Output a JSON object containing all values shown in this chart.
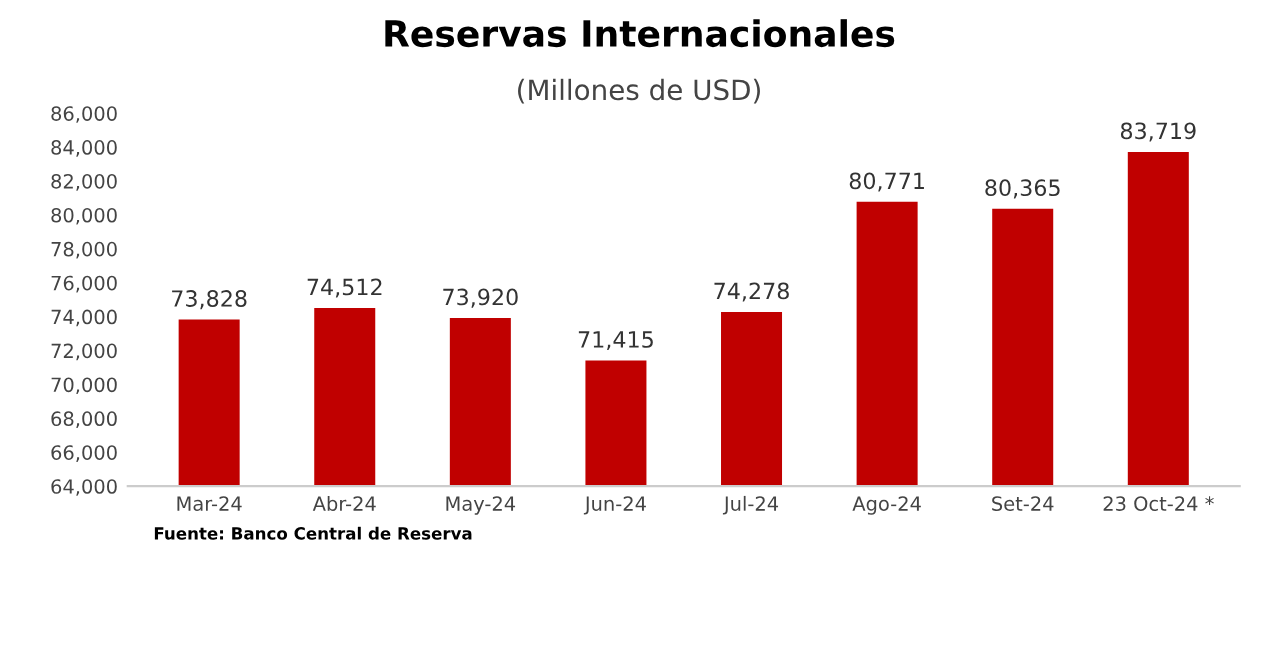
{
  "chart_data": {
    "type": "bar",
    "title": "Reservas Internacionales",
    "subtitle": "(Millones de USD)",
    "categories": [
      "Mar-24",
      "Abr-24",
      "May-24",
      "Jun-24",
      "Jul-24",
      "Ago-24",
      "Set-24",
      "23 Oct-24 *"
    ],
    "values": [
      73828,
      74512,
      73920,
      71415,
      74278,
      80771,
      80365,
      83719
    ],
    "value_labels": [
      "73,828",
      "74,512",
      "73,920",
      "71,415",
      "74,278",
      "80,771",
      "80,365",
      "83,719"
    ],
    "color": "#c00000",
    "ylim": [
      64000,
      86000
    ],
    "yticks": [
      {
        "value": 64000,
        "label": "64,000"
      },
      {
        "value": 66000,
        "label": "66,000"
      },
      {
        "value": 68000,
        "label": "68,000"
      },
      {
        "value": 70000,
        "label": "70,000"
      },
      {
        "value": 72000,
        "label": "72,000"
      },
      {
        "value": 74000,
        "label": "74,000"
      },
      {
        "value": 76000,
        "label": "76,000"
      },
      {
        "value": 78000,
        "label": "78,000"
      },
      {
        "value": 80000,
        "label": "80,000"
      },
      {
        "value": 82000,
        "label": "82,000"
      },
      {
        "value": 84000,
        "label": "84,000"
      },
      {
        "value": 86000,
        "label": "86,000"
      }
    ],
    "grid": false,
    "annotations": [
      "Fuente: Banco Central de Reserva"
    ]
  }
}
